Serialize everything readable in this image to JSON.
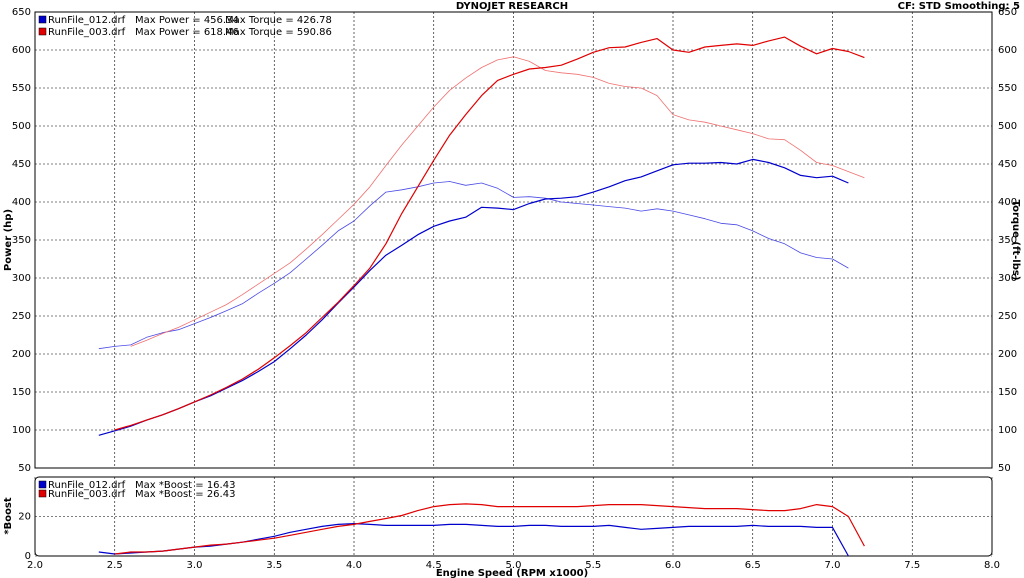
{
  "chart_data": [
    {
      "type": "line",
      "title": "DYNOJET RESEARCH",
      "subtitle": "CF: STD  Smoothing: 5",
      "ylabel": "Power (hp)",
      "y2label": "Torque (ft-lbs)",
      "x": [
        2.4,
        2.5,
        2.6,
        2.7,
        2.8,
        2.9,
        3.0,
        3.1,
        3.2,
        3.3,
        3.4,
        3.5,
        3.6,
        3.7,
        3.8,
        3.9,
        4.0,
        4.1,
        4.2,
        4.3,
        4.4,
        4.5,
        4.6,
        4.7,
        4.8,
        4.9,
        5.0,
        5.1,
        5.2,
        5.3,
        5.4,
        5.5,
        5.6,
        5.7,
        5.8,
        5.9,
        6.0,
        6.1,
        6.2,
        6.3,
        6.4,
        6.5,
        6.6,
        6.7,
        6.8,
        6.9,
        7.0,
        7.1,
        7.2
      ],
      "xlim": [
        2,
        8
      ],
      "xticks": [
        2,
        2.5,
        3,
        3.5,
        4,
        4.5,
        5,
        5.5,
        6,
        6.5,
        7,
        7.5,
        8
      ],
      "ylim": [
        50,
        650
      ],
      "yticks": [
        50,
        100,
        150,
        200,
        250,
        300,
        350,
        400,
        450,
        500,
        550,
        600,
        650
      ],
      "y2lim": [
        50,
        650
      ],
      "y2ticks": [
        50,
        100,
        150,
        200,
        250,
        300,
        350,
        400,
        450,
        500,
        550,
        600,
        650
      ],
      "grid": true,
      "series": [
        {
          "name": "RunFile_012.drf",
          "power_label": "Max Power = 456.34",
          "torque_label": "Max Torque = 426.78",
          "color": "#0000cc",
          "torque_color": "#4a4ae6",
          "values": [
            93,
            99,
            105,
            113,
            120,
            128,
            137,
            145,
            155,
            165,
            177,
            190,
            207,
            225,
            245,
            267,
            288,
            310,
            330,
            343,
            357,
            368,
            375,
            380,
            393,
            392,
            390,
            398,
            404,
            405,
            407,
            413,
            420,
            428,
            433,
            441,
            449,
            451,
            451,
            452,
            450,
            456,
            452,
            445,
            435,
            432,
            434,
            425,
            null
          ],
          "torque": [
            207,
            210,
            212,
            222,
            228,
            232,
            240,
            248,
            257,
            266,
            280,
            293,
            307,
            325,
            343,
            362,
            375,
            395,
            413,
            416,
            420,
            425,
            427,
            422,
            425,
            418,
            406,
            407,
            405,
            400,
            398,
            396,
            394,
            392,
            388,
            391,
            388,
            383,
            378,
            372,
            370,
            362,
            352,
            345,
            333,
            327,
            325,
            313,
            null
          ]
        },
        {
          "name": "RunFile_003.drf",
          "power_label": "Max Power = 618.46",
          "torque_label": "Max Torque = 590.86",
          "color": "#e00000",
          "torque_color": "#f07070",
          "values": [
            null,
            100,
            106,
            113,
            120,
            128,
            137,
            146,
            156,
            167,
            180,
            195,
            211,
            228,
            248,
            268,
            290,
            313,
            345,
            385,
            420,
            455,
            488,
            515,
            540,
            560,
            568,
            575,
            577,
            580,
            588,
            597,
            603,
            604,
            610,
            615,
            600,
            597,
            604,
            606,
            608,
            606,
            612,
            617,
            605,
            595,
            602,
            598,
            590
          ],
          "torque": [
            null,
            null,
            210,
            218,
            227,
            235,
            245,
            255,
            265,
            278,
            292,
            306,
            320,
            338,
            357,
            377,
            397,
            420,
            448,
            475,
            500,
            525,
            547,
            563,
            577,
            587,
            591,
            585,
            573,
            570,
            568,
            564,
            556,
            552,
            550,
            540,
            515,
            508,
            505,
            500,
            495,
            490,
            483,
            482,
            468,
            452,
            448,
            440,
            432
          ]
        }
      ]
    },
    {
      "type": "line",
      "ylabel": "*Boost",
      "xlabel": "Engine Speed (RPM x1000)",
      "x": [
        2.4,
        2.5,
        2.6,
        2.7,
        2.8,
        2.9,
        3.0,
        3.1,
        3.2,
        3.3,
        3.4,
        3.5,
        3.6,
        3.7,
        3.8,
        3.9,
        4.0,
        4.1,
        4.2,
        4.3,
        4.4,
        4.5,
        4.6,
        4.7,
        4.8,
        4.9,
        5.0,
        5.1,
        5.2,
        5.3,
        5.4,
        5.5,
        5.6,
        5.7,
        5.8,
        5.9,
        6.0,
        6.1,
        6.2,
        6.3,
        6.4,
        6.5,
        6.6,
        6.7,
        6.8,
        6.9,
        7.0,
        7.1,
        7.2
      ],
      "xlim": [
        2,
        8
      ],
      "xticks": [
        {
          "value": 2,
          "label": "2.0"
        },
        2.5,
        {
          "value": 3,
          "label": "3.0"
        },
        3.5,
        {
          "value": 4,
          "label": "4.0"
        },
        4.5,
        {
          "value": 5,
          "label": "5.0"
        },
        5.5,
        {
          "value": 6,
          "label": "6.0"
        },
        6.5,
        {
          "value": 7,
          "label": "7.0"
        },
        7.5,
        {
          "value": 8,
          "label": "8.0"
        }
      ],
      "ylim": [
        0,
        40
      ],
      "yticks": [
        0,
        20
      ],
      "grid": true,
      "series": [
        {
          "name": "RunFile_012.drf",
          "label": "Max *Boost = 16.43",
          "color": "#0000cc",
          "values": [
            2,
            1,
            1.5,
            2,
            2.5,
            3.5,
            4.5,
            5,
            6,
            7,
            8.5,
            10,
            12,
            13.5,
            15,
            16,
            16.4,
            16,
            15.5,
            15.5,
            15.5,
            15.5,
            16,
            16,
            15.5,
            15,
            15,
            15.5,
            15.5,
            15,
            15,
            15,
            15.5,
            14.5,
            13.5,
            14,
            14.5,
            15,
            15,
            15,
            15,
            15.5,
            15,
            15,
            15,
            14.5,
            14.5,
            0,
            null
          ]
        },
        {
          "name": "RunFile_003.drf",
          "label": "Max *Boost = 26.43",
          "color": "#e00000",
          "values": [
            null,
            1,
            2,
            2,
            2.5,
            3.5,
            4.5,
            5.5,
            6,
            7,
            8,
            9,
            10.5,
            12,
            13.5,
            15,
            16,
            17.5,
            19,
            20.5,
            23,
            25,
            26,
            26.4,
            26,
            25,
            25,
            25,
            25,
            25,
            25,
            25.5,
            26,
            26,
            26,
            25.5,
            25,
            24.5,
            24,
            24,
            24,
            23.5,
            23,
            23,
            24,
            26,
            25,
            20,
            5
          ]
        }
      ]
    }
  ]
}
